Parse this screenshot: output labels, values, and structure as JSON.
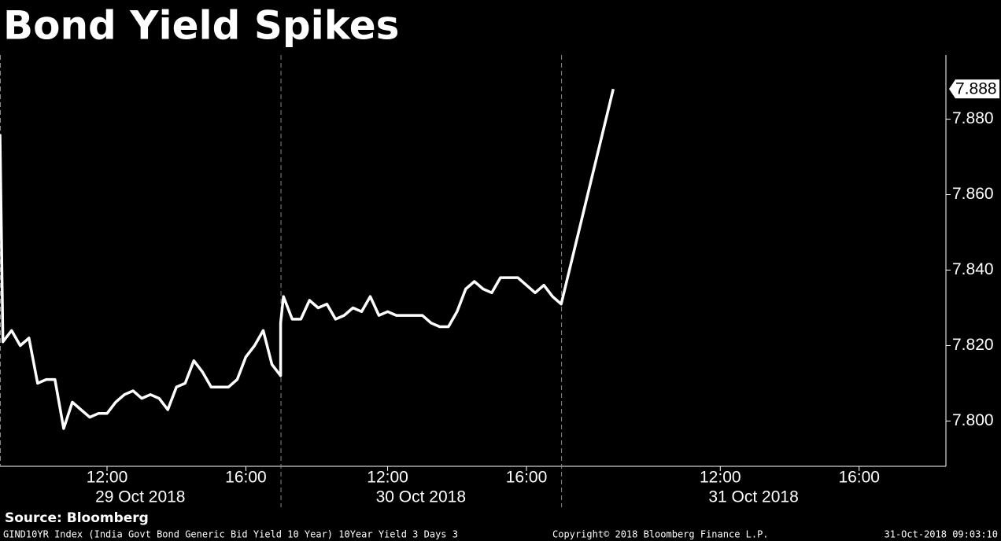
{
  "chart_data": {
    "type": "line",
    "title": "Bond Yield Spikes",
    "source": "Source: Bloomberg",
    "footer": {
      "description": "GIND10YR Index (India Govt Bond Generic Bid Yield 10 Year) 10Year Yield 3 Days 3",
      "copyright": "Copyright© 2018 Bloomberg Finance L.P.",
      "timestamp": "31-Oct-2018 09:03:10"
    },
    "color": "#ffffff",
    "days": [
      {
        "label": "29 Oct 2018",
        "xlim": [
          "2018-10-29 08:55",
          "2018-10-29 17:00"
        ]
      },
      {
        "label": "30 Oct 2018",
        "xlim": [
          "2018-10-30 08:55",
          "2018-10-30 17:00"
        ]
      },
      {
        "label": "31 Oct 2018",
        "xlim": [
          "2018-10-31 07:25",
          "2018-10-31 18:30"
        ]
      }
    ],
    "xticks": [
      {
        "value": "2018-10-29 12:00",
        "label": "12:00"
      },
      {
        "value": "2018-10-29 16:00",
        "label": "16:00"
      },
      {
        "value": "2018-10-30 12:00",
        "label": "12:00"
      },
      {
        "value": "2018-10-30 16:00",
        "label": "16:00"
      },
      {
        "value": "2018-10-31 12:00",
        "label": "12:00"
      },
      {
        "value": "2018-10-31 16:00",
        "label": "16:00"
      }
    ],
    "x": [
      "2018-10-29 08:55",
      "2018-10-29 09:00",
      "2018-10-29 09:15",
      "2018-10-29 09:30",
      "2018-10-29 09:45",
      "2018-10-29 10:00",
      "2018-10-29 10:15",
      "2018-10-29 10:30",
      "2018-10-29 10:45",
      "2018-10-29 11:00",
      "2018-10-29 11:15",
      "2018-10-29 11:30",
      "2018-10-29 11:45",
      "2018-10-29 12:00",
      "2018-10-29 12:15",
      "2018-10-29 12:30",
      "2018-10-29 12:45",
      "2018-10-29 13:00",
      "2018-10-29 13:15",
      "2018-10-29 13:30",
      "2018-10-29 13:45",
      "2018-10-29 14:00",
      "2018-10-29 14:15",
      "2018-10-29 14:30",
      "2018-10-29 14:45",
      "2018-10-29 15:00",
      "2018-10-29 15:15",
      "2018-10-29 15:30",
      "2018-10-29 15:45",
      "2018-10-29 16:00",
      "2018-10-29 16:15",
      "2018-10-29 16:30",
      "2018-10-29 16:45",
      "2018-10-29 17:00",
      "2018-10-30 08:55",
      "2018-10-30 09:00",
      "2018-10-30 09:15",
      "2018-10-30 09:30",
      "2018-10-30 09:45",
      "2018-10-30 10:00",
      "2018-10-30 10:15",
      "2018-10-30 10:30",
      "2018-10-30 10:45",
      "2018-10-30 11:00",
      "2018-10-30 11:15",
      "2018-10-30 11:30",
      "2018-10-30 11:45",
      "2018-10-30 12:00",
      "2018-10-30 12:15",
      "2018-10-30 12:30",
      "2018-10-30 12:45",
      "2018-10-30 13:00",
      "2018-10-30 13:15",
      "2018-10-30 13:30",
      "2018-10-30 13:45",
      "2018-10-30 14:00",
      "2018-10-30 14:15",
      "2018-10-30 14:30",
      "2018-10-30 14:45",
      "2018-10-30 15:00",
      "2018-10-30 15:15",
      "2018-10-30 15:30",
      "2018-10-30 15:45",
      "2018-10-30 16:00",
      "2018-10-30 16:15",
      "2018-10-30 16:30",
      "2018-10-30 16:45",
      "2018-10-30 17:00",
      "2018-10-31 08:55"
    ],
    "values": [
      7.876,
      7.821,
      7.824,
      7.82,
      7.822,
      7.81,
      7.811,
      7.811,
      7.798,
      7.805,
      7.803,
      7.801,
      7.802,
      7.802,
      7.805,
      7.807,
      7.808,
      7.806,
      7.807,
      7.806,
      7.803,
      7.809,
      7.81,
      7.816,
      7.813,
      7.809,
      7.809,
      7.809,
      7.811,
      7.817,
      7.82,
      7.824,
      7.815,
      7.812,
      7.826,
      7.833,
      7.827,
      7.827,
      7.832,
      7.83,
      7.831,
      7.827,
      7.828,
      7.83,
      7.829,
      7.833,
      7.828,
      7.829,
      7.828,
      7.828,
      7.828,
      7.828,
      7.826,
      7.825,
      7.825,
      7.829,
      7.835,
      7.837,
      7.835,
      7.834,
      7.838,
      7.838,
      7.838,
      7.836,
      7.834,
      7.836,
      7.833,
      7.831,
      7.888
    ],
    "ylim": [
      7.788,
      7.897
    ],
    "yticks": [
      {
        "value": 7.8,
        "label": "7.800"
      },
      {
        "value": 7.82,
        "label": "7.820"
      },
      {
        "value": 7.84,
        "label": "7.840"
      },
      {
        "value": 7.86,
        "label": "7.860"
      },
      {
        "value": 7.88,
        "label": "7.880"
      }
    ]
  }
}
